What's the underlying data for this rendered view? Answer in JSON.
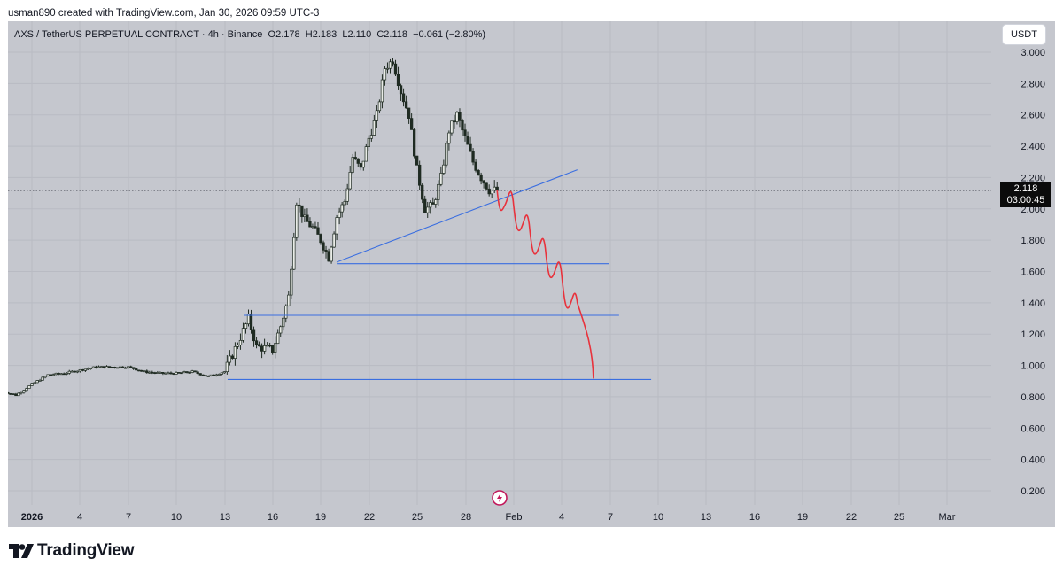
{
  "header": {
    "credit": "usman890 created with TradingView.com, Jan 30, 2026 09:59 UTC-3"
  },
  "legend": {
    "symbol": "AXS / TetherUS PERPETUAL CONTRACT · 4h · Binance",
    "open_label": "O",
    "open": "2.178",
    "high_label": "H",
    "high": "2.183",
    "low_label": "L",
    "low": "2.110",
    "close_label": "C",
    "close": "2.118",
    "change": "−0.061 (−2.80%)"
  },
  "currency_button": "USDT",
  "last_price": {
    "value": "2.118",
    "countdown": "03:00:45"
  },
  "brand": {
    "name": "TradingView"
  },
  "colors": {
    "background": "#c5c7ce",
    "candle": "#1f2b22",
    "blue_lines": "#3a6ee0",
    "red_projection": "#e8323c",
    "price_tag": "#0b0b0b"
  },
  "chart_data": {
    "type": "candlestick",
    "title": "AXS / TetherUS PERPETUAL CONTRACT · 4h · Binance",
    "timeframe": "4h",
    "ylim": [
      0.1,
      3.1
    ],
    "y_ticks": [
      "3.000",
      "2.800",
      "2.600",
      "2.400",
      "2.200",
      "2.000",
      "1.800",
      "1.600",
      "1.400",
      "1.200",
      "1.000",
      "0.800",
      "0.600",
      "0.400",
      "0.200"
    ],
    "x_ticks": [
      "2026",
      "4",
      "7",
      "10",
      "13",
      "16",
      "19",
      "22",
      "25",
      "28",
      "Feb",
      "4",
      "7",
      "10",
      "13",
      "16",
      "19",
      "22",
      "25",
      "Mar"
    ],
    "price_path": [
      [
        "Dec 30",
        0.84
      ],
      [
        "Dec 31",
        0.81
      ],
      [
        "Jan 1",
        0.88
      ],
      [
        "Jan 2",
        0.94
      ],
      [
        "Jan 3",
        0.95
      ],
      [
        "Jan 4",
        0.97
      ],
      [
        "Jan 5",
        0.99
      ],
      [
        "Jan 6",
        0.99
      ],
      [
        "Jan 7",
        0.99
      ],
      [
        "Jan 8",
        0.96
      ],
      [
        "Jan 9",
        0.95
      ],
      [
        "Jan 10",
        0.95
      ],
      [
        "Jan 11",
        0.96
      ],
      [
        "Jan 12",
        0.93
      ],
      [
        "Jan 13",
        0.96
      ],
      [
        "Jan 14",
        1.18
      ],
      [
        "Jan 14.5",
        1.3
      ],
      [
        "Jan 15",
        1.12
      ],
      [
        "Jan 16",
        1.1
      ],
      [
        "Jan 16.5",
        1.25
      ],
      [
        "Jan 17",
        1.44
      ],
      [
        "Jan 17.5",
        2.05
      ],
      [
        "Jan 18",
        1.93
      ],
      [
        "Jan 18.5",
        1.88
      ],
      [
        "Jan 19",
        1.8
      ],
      [
        "Jan 19.5",
        1.69
      ],
      [
        "Jan 20",
        1.95
      ],
      [
        "Jan 20.5",
        2.05
      ],
      [
        "Jan 21",
        2.33
      ],
      [
        "Jan 21.5",
        2.25
      ],
      [
        "Jan 22",
        2.45
      ],
      [
        "Jan 22.5",
        2.6
      ],
      [
        "Jan 23",
        2.9
      ],
      [
        "Jan 23.5",
        2.95
      ],
      [
        "Jan 24",
        2.75
      ],
      [
        "Jan 24.5",
        2.6
      ],
      [
        "Jan 25",
        2.25
      ],
      [
        "Jan 25.5",
        2.0
      ],
      [
        "Jan 26",
        2.02
      ],
      [
        "Jan 26.5",
        2.2
      ],
      [
        "Jan 27",
        2.5
      ],
      [
        "Jan 27.5",
        2.6
      ],
      [
        "Jan 28",
        2.45
      ],
      [
        "Jan 28.5",
        2.3
      ],
      [
        "Jan 29",
        2.2
      ],
      [
        "Jan 29.5",
        2.12
      ],
      [
        "Jan 30",
        2.118
      ]
    ],
    "trendline": {
      "from": [
        "Jan 20",
        1.66
      ],
      "to": [
        "Feb 4",
        2.25
      ]
    },
    "horizontal_levels": [
      1.65,
      1.32,
      0.91
    ],
    "projection": [
      [
        "Jan 30",
        2.118
      ],
      [
        "Jan 31",
        2.05
      ],
      [
        "Feb 1",
        1.9
      ],
      [
        "Feb 2",
        1.75
      ],
      [
        "Feb 3",
        1.6
      ],
      [
        "Feb 4",
        1.4
      ],
      [
        "Feb 5",
        0.92
      ]
    ],
    "last_price_line": 2.118
  }
}
